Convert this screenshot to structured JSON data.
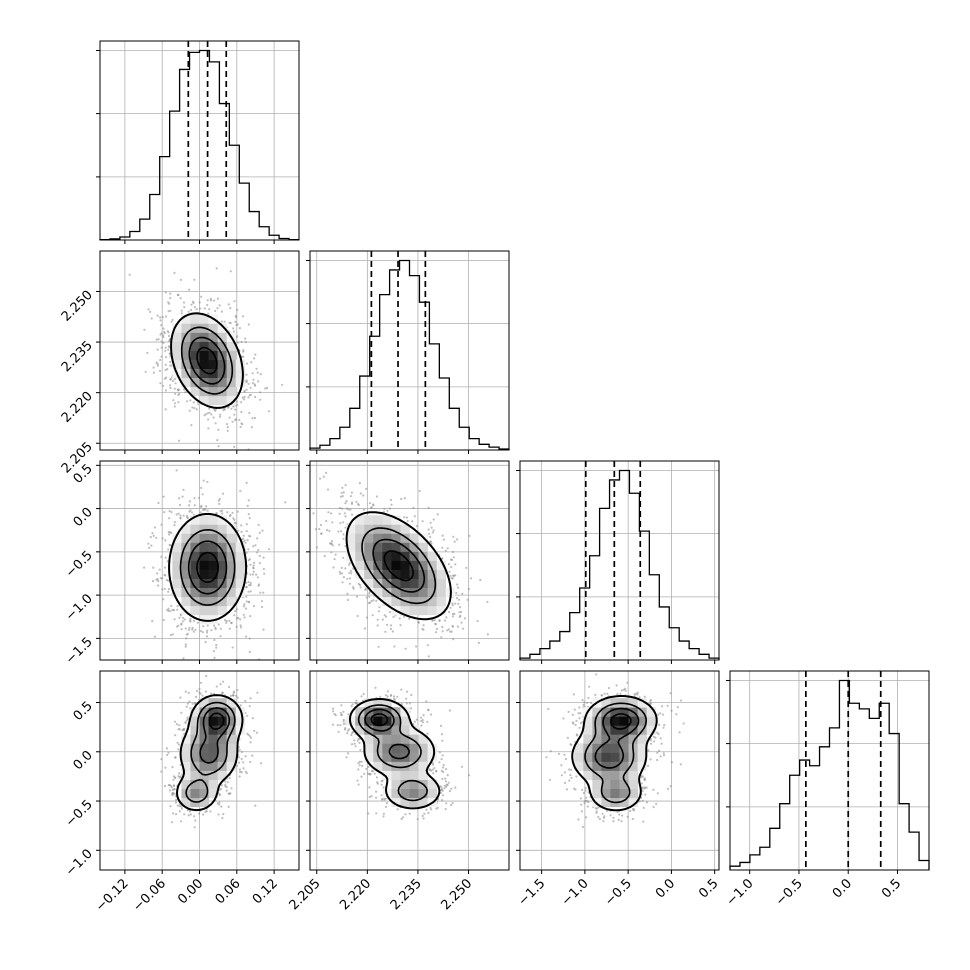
{
  "chart_data": {
    "type": "corner",
    "title": "",
    "params": [
      {
        "name": "",
        "range": [
          -0.16,
          0.16
        ],
        "ticks": [
          -0.12,
          -0.06,
          0.0,
          0.06,
          0.12
        ],
        "tick_labels": [
          "−0.12",
          "−0.06",
          "0.00",
          "0.06",
          "0.12"
        ],
        "quantiles": [
          -0.018,
          0.013,
          0.043
        ]
      },
      {
        "name": "",
        "range": [
          2.203,
          2.262
        ],
        "ticks": [
          2.205,
          2.22,
          2.235,
          2.25
        ],
        "tick_labels": [
          "2.205",
          "2.220",
          "2.235",
          "2.250"
        ],
        "x_ticks": [
          2.205,
          2.22,
          2.235,
          2.25
        ],
        "x_tick_labels": [
          "2.205",
          "2.220",
          "2.235",
          "2.250"
        ],
        "quantiles": [
          2.2212,
          2.2291,
          2.2372
        ]
      },
      {
        "name": "",
        "range": [
          -1.75,
          0.55
        ],
        "ticks": [
          -1.5,
          -1.0,
          -0.5,
          0.0,
          0.5
        ],
        "tick_labels": [
          "−1.5",
          "−1.0",
          "−0.5",
          "0.0",
          "0.5"
        ],
        "quantiles": [
          -0.99,
          -0.66,
          -0.36
        ]
      },
      {
        "name": "",
        "range": [
          -1.2,
          0.82
        ],
        "ticks": [
          -1.0,
          -0.5,
          0.0,
          0.5
        ],
        "tick_labels": [
          "−1.0",
          "−0.5",
          "0.0",
          "0.5"
        ],
        "quantiles": [
          -0.43,
          0.0,
          0.33
        ]
      }
    ],
    "histograms": [
      [
        0.002,
        0.006,
        0.016,
        0.045,
        0.11,
        0.24,
        0.44,
        0.68,
        0.9,
        0.99,
        1.0,
        0.94,
        0.72,
        0.5,
        0.3,
        0.15,
        0.07,
        0.025,
        0.008,
        0.002
      ],
      [
        0.01,
        0.025,
        0.06,
        0.12,
        0.22,
        0.39,
        0.6,
        0.82,
        0.95,
        1.0,
        0.92,
        0.78,
        0.56,
        0.38,
        0.22,
        0.12,
        0.06,
        0.03,
        0.015,
        0.005
      ],
      [
        0.01,
        0.03,
        0.06,
        0.1,
        0.15,
        0.25,
        0.38,
        0.55,
        0.8,
        0.95,
        1.0,
        0.88,
        0.68,
        0.45,
        0.28,
        0.17,
        0.1,
        0.06,
        0.03,
        0.01
      ],
      [
        0.02,
        0.04,
        0.08,
        0.12,
        0.22,
        0.35,
        0.5,
        0.58,
        0.55,
        0.65,
        0.75,
        1.0,
        0.88,
        0.85,
        0.8,
        0.88,
        0.72,
        0.35,
        0.2,
        0.05
      ]
    ],
    "hist_yticks": [
      0.333,
      0.667,
      1.0
    ],
    "pairs": [
      {
        "i": 1,
        "j": 0,
        "blobs": [
          {
            "cx": 0.012,
            "cy": 2.2295,
            "sx": 0.028,
            "sy": 0.0068,
            "rho": -0.3,
            "w": 1.0
          }
        ]
      },
      {
        "i": 2,
        "j": 0,
        "blobs": [
          {
            "cx": 0.013,
            "cy": -0.68,
            "sx": 0.03,
            "sy": 0.3,
            "rho": 0.0,
            "w": 1.0
          }
        ]
      },
      {
        "i": 2,
        "j": 1,
        "blobs": [
          {
            "cx": 2.2293,
            "cy": -0.66,
            "sx": 0.0075,
            "sy": 0.3,
            "rho": -0.5,
            "w": 1.0
          }
        ]
      },
      {
        "i": 3,
        "j": 0,
        "blobs": [
          {
            "cx": 0.028,
            "cy": 0.33,
            "sx": 0.02,
            "sy": 0.12,
            "rho": 0.0,
            "w": 1.0
          },
          {
            "cx": 0.015,
            "cy": -0.02,
            "sx": 0.024,
            "sy": 0.16,
            "rho": 0.0,
            "w": 0.75
          },
          {
            "cx": -0.005,
            "cy": -0.42,
            "sx": 0.018,
            "sy": 0.1,
            "rho": 0.0,
            "w": 0.55
          }
        ]
      },
      {
        "i": 3,
        "j": 1,
        "blobs": [
          {
            "cx": 2.2235,
            "cy": 0.33,
            "sx": 0.0042,
            "sy": 0.1,
            "rho": 0.0,
            "w": 1.0
          },
          {
            "cx": 2.2295,
            "cy": 0.0,
            "sx": 0.0055,
            "sy": 0.13,
            "rho": 0.0,
            "w": 0.7
          },
          {
            "cx": 2.2335,
            "cy": -0.4,
            "sx": 0.0045,
            "sy": 0.1,
            "rho": 0.0,
            "w": 0.55
          }
        ]
      },
      {
        "i": 3,
        "j": 2,
        "blobs": [
          {
            "cx": -0.58,
            "cy": 0.32,
            "sx": 0.2,
            "sy": 0.12,
            "rho": 0.0,
            "w": 1.0
          },
          {
            "cx": -0.72,
            "cy": -0.05,
            "sx": 0.22,
            "sy": 0.15,
            "rho": 0.0,
            "w": 0.8
          },
          {
            "cx": -0.64,
            "cy": -0.42,
            "sx": 0.16,
            "sy": 0.1,
            "rho": 0.0,
            "w": 0.55
          }
        ]
      }
    ],
    "contour_levels": [
      0.12,
      0.35,
      0.6,
      0.85
    ],
    "grid": true,
    "colors": {
      "hist": "#000000",
      "quantile": "#000000",
      "density_dark": "#000000",
      "points": "#888888",
      "grid": "#b0b0b0"
    }
  }
}
